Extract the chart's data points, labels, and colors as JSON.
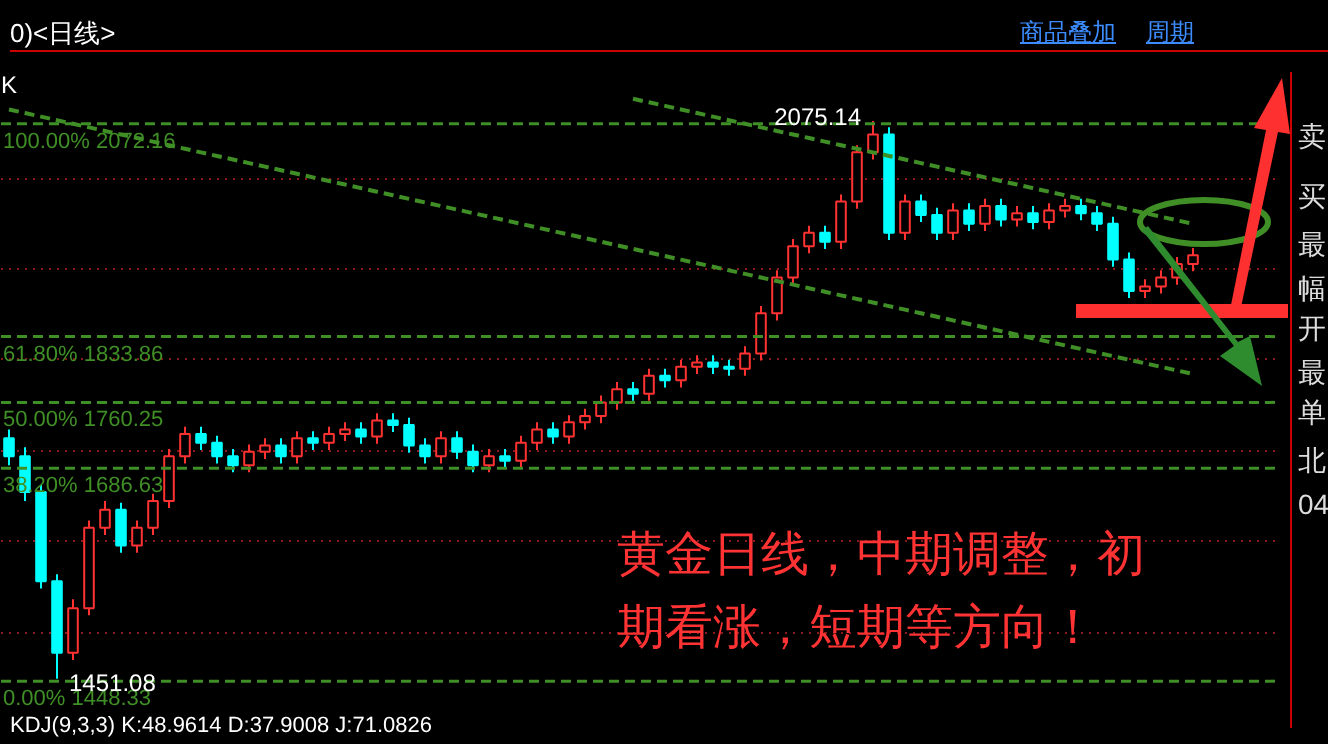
{
  "chart_data": {
    "type": "candlestick",
    "title": "0)<日线>",
    "categories": [
      null,
      null,
      null,
      null,
      null,
      null,
      null,
      null,
      null,
      null,
      null,
      null,
      null,
      null,
      null,
      null,
      null,
      null,
      null,
      null,
      null,
      null,
      null,
      null,
      null,
      null,
      null,
      null,
      null,
      null,
      null,
      null,
      null,
      null,
      null,
      null,
      null,
      null,
      null,
      null,
      null,
      null,
      null,
      null,
      null,
      null,
      null,
      null,
      null,
      null,
      null,
      null,
      null,
      null,
      null,
      null,
      null,
      null,
      null,
      null,
      null,
      null,
      null,
      null,
      null,
      null,
      null,
      null,
      null,
      null,
      null,
      null,
      null,
      null,
      null
    ],
    "ohlc": [
      [
        1720,
        1730,
        1690,
        1700
      ],
      [
        1700,
        1710,
        1650,
        1660
      ],
      [
        1660,
        1668,
        1552,
        1560
      ],
      [
        1560,
        1568,
        1451.08,
        1480
      ],
      [
        1480,
        1540,
        1472,
        1530
      ],
      [
        1530,
        1628,
        1522,
        1620
      ],
      [
        1620,
        1650,
        1612,
        1640
      ],
      [
        1640,
        1648,
        1592,
        1600
      ],
      [
        1600,
        1628,
        1592,
        1620
      ],
      [
        1620,
        1658,
        1612,
        1650
      ],
      [
        1650,
        1708,
        1642,
        1700
      ],
      [
        1700,
        1733,
        1692,
        1725
      ],
      [
        1725,
        1733,
        1707,
        1715
      ],
      [
        1715,
        1723,
        1692,
        1700
      ],
      [
        1700,
        1708,
        1682,
        1690
      ],
      [
        1690,
        1713,
        1682,
        1705
      ],
      [
        1705,
        1720,
        1697,
        1712
      ],
      [
        1712,
        1720,
        1692,
        1700
      ],
      [
        1700,
        1728,
        1692,
        1720
      ],
      [
        1720,
        1728,
        1707,
        1715
      ],
      [
        1715,
        1733,
        1707,
        1725
      ],
      [
        1725,
        1738,
        1717,
        1730
      ],
      [
        1730,
        1738,
        1714,
        1722
      ],
      [
        1722,
        1748,
        1714,
        1740
      ],
      [
        1740,
        1748,
        1727,
        1735
      ],
      [
        1735,
        1743,
        1704,
        1712
      ],
      [
        1712,
        1720,
        1692,
        1700
      ],
      [
        1700,
        1728,
        1692,
        1720
      ],
      [
        1720,
        1728,
        1697,
        1705
      ],
      [
        1705,
        1713,
        1682,
        1690
      ],
      [
        1690,
        1708,
        1682,
        1700
      ],
      [
        1700,
        1708,
        1687,
        1695
      ],
      [
        1695,
        1723,
        1687,
        1715
      ],
      [
        1715,
        1738,
        1707,
        1730
      ],
      [
        1730,
        1738,
        1714,
        1722
      ],
      [
        1722,
        1746,
        1714,
        1738
      ],
      [
        1738,
        1753,
        1730,
        1745
      ],
      [
        1745,
        1768,
        1737,
        1760
      ],
      [
        1760,
        1783,
        1752,
        1775
      ],
      [
        1775,
        1783,
        1762,
        1770
      ],
      [
        1770,
        1798,
        1762,
        1790
      ],
      [
        1790,
        1798,
        1777,
        1785
      ],
      [
        1785,
        1808,
        1777,
        1800
      ],
      [
        1800,
        1813,
        1792,
        1805
      ],
      [
        1805,
        1813,
        1792,
        1800
      ],
      [
        1800,
        1808,
        1790,
        1798
      ],
      [
        1798,
        1823,
        1790,
        1815
      ],
      [
        1815,
        1868,
        1807,
        1860
      ],
      [
        1860,
        1908,
        1852,
        1900
      ],
      [
        1900,
        1943,
        1892,
        1935
      ],
      [
        1935,
        1958,
        1927,
        1950
      ],
      [
        1950,
        1958,
        1932,
        1940
      ],
      [
        1940,
        1993,
        1932,
        1985
      ],
      [
        1985,
        2048,
        1977,
        2040
      ],
      [
        2040,
        2075.14,
        2032,
        2060
      ],
      [
        2060,
        2068,
        1942,
        1950
      ],
      [
        1950,
        1993,
        1942,
        1985
      ],
      [
        1985,
        1993,
        1962,
        1970
      ],
      [
        1970,
        1978,
        1942,
        1950
      ],
      [
        1950,
        1983,
        1942,
        1975
      ],
      [
        1975,
        1983,
        1952,
        1960
      ],
      [
        1960,
        1988,
        1952,
        1980
      ],
      [
        1980,
        1988,
        1957,
        1965
      ],
      [
        1965,
        1980,
        1957,
        1972
      ],
      [
        1972,
        1980,
        1954,
        1962
      ],
      [
        1962,
        1983,
        1954,
        1975
      ],
      [
        1975,
        1988,
        1967,
        1980
      ],
      [
        1980,
        1988,
        1964,
        1972
      ],
      [
        1972,
        1980,
        1952,
        1960
      ],
      [
        1960,
        1968,
        1912,
        1920
      ],
      [
        1920,
        1928,
        1877,
        1885
      ],
      [
        1885,
        1898,
        1877,
        1890
      ],
      [
        1890,
        1908,
        1882,
        1900
      ],
      [
        1900,
        1923,
        1892,
        1915
      ],
      [
        1915,
        1933,
        1907,
        1925
      ]
    ],
    "colors": [
      "#00ffff",
      "#00ffff",
      "#00ffff",
      "#00ffff",
      "#ff3232",
      "#ff3232",
      "#ff3232",
      "#00ffff",
      "#ff3232",
      "#ff3232",
      "#ff3232",
      "#ff3232",
      "#00ffff",
      "#00ffff",
      "#00ffff",
      "#ff3232",
      "#ff3232",
      "#00ffff",
      "#ff3232",
      "#00ffff",
      "#ff3232",
      "#ff3232",
      "#00ffff",
      "#ff3232",
      "#00ffff",
      "#00ffff",
      "#00ffff",
      "#ff3232",
      "#00ffff",
      "#00ffff",
      "#ff3232",
      "#00ffff",
      "#ff3232",
      "#ff3232",
      "#00ffff",
      "#ff3232",
      "#ff3232",
      "#ff3232",
      "#ff3232",
      "#00ffff",
      "#ff3232",
      "#00ffff",
      "#ff3232",
      "#ff3232",
      "#00ffff",
      "#00ffff",
      "#ff3232",
      "#ff3232",
      "#ff3232",
      "#ff3232",
      "#ff3232",
      "#00ffff",
      "#ff3232",
      "#ff3232",
      "#ff3232",
      "#00ffff",
      "#ff3232",
      "#00ffff",
      "#00ffff",
      "#ff3232",
      "#00ffff",
      "#ff3232",
      "#00ffff",
      "#ff3232",
      "#00ffff",
      "#ff3232",
      "#ff3232",
      "#00ffff",
      "#00ffff",
      "#00ffff",
      "#00ffff",
      "#ff3232",
      "#ff3232",
      "#ff3232",
      "#ff3232"
    ],
    "series": [
      {
        "type": "line",
        "color": "#3f8f26",
        "line_style": "dashed",
        "values": [
          2088,
          2084,
          2080,
          2076,
          2072,
          2068,
          2064,
          2060,
          2056,
          2052,
          2048,
          2044,
          2040,
          2036,
          2032,
          2028,
          2024,
          2020,
          2016,
          2012,
          2008,
          2004,
          2000,
          1996,
          1992,
          1988,
          1984,
          1980,
          1976,
          1972,
          1968,
          1964,
          1960,
          1956,
          1952,
          1948,
          1944,
          1940,
          1936,
          1932,
          1928,
          1924,
          1920,
          1916,
          1912,
          1908,
          1904,
          1900,
          1896,
          1892,
          1888,
          1884,
          1880,
          1876,
          1872,
          1868,
          1864,
          1860,
          1856,
          1852,
          1848,
          1844,
          1840,
          1836,
          1832,
          1828,
          1824,
          1820,
          1816,
          1812,
          1808,
          1804,
          1800,
          1796,
          1792
        ]
      },
      {
        "type": "line",
        "color": "#3f8f26",
        "line_style": "dashed",
        "values": [
          null,
          null,
          null,
          null,
          null,
          null,
          null,
          null,
          null,
          null,
          null,
          null,
          null,
          null,
          null,
          null,
          null,
          null,
          null,
          null,
          null,
          null,
          null,
          null,
          null,
          null,
          null,
          null,
          null,
          null,
          null,
          null,
          null,
          null,
          null,
          null,
          null,
          null,
          null,
          2100,
          2096,
          2092,
          2088,
          2084,
          2080,
          2076,
          2072,
          2068,
          2064,
          2060,
          2056,
          2052,
          2048,
          2044,
          2040,
          2036,
          2032,
          2028,
          2024,
          2020,
          2016,
          2012,
          2008,
          2004,
          2000,
          1996,
          1992,
          1988,
          1984,
          1980,
          1976,
          1972,
          1968,
          1964,
          1960
        ]
      }
    ],
    "ref_lines": [
      {
        "axis": "y",
        "value": 2072.16,
        "label": "100.00% 2072.16",
        "color": "#3f8f26",
        "line_style": "dashed"
      },
      {
        "axis": "y",
        "value": 1833.86,
        "label": "61.80% 1833.86",
        "color": "#3f8f26",
        "line_style": "dashed"
      },
      {
        "axis": "y",
        "value": 1760.25,
        "label": "50.00% 1760.25",
        "color": "#3f8f26",
        "line_style": "dashed"
      },
      {
        "axis": "y",
        "value": 1686.63,
        "label": "38.20% 1686.63",
        "color": "#3f8f26",
        "line_style": "dashed"
      },
      {
        "axis": "y",
        "value": 1448.33,
        "label": "0.00% 1448.33",
        "color": "#3f8f26",
        "line_style": "dashed"
      }
    ],
    "ylim": [
      1406,
      2140
    ],
    "yticks": [
      {
        "value": 1503,
        "label": null
      },
      {
        "value": 1605,
        "label": null
      },
      {
        "value": 1706,
        "label": null
      },
      {
        "value": 1808,
        "label": null
      },
      {
        "value": 1909,
        "label": null
      },
      {
        "value": 2010,
        "label": null
      }
    ],
    "tick_labels": false,
    "grid": "y",
    "annotations": [
      "K",
      "商品叠加",
      "周期",
      "黄金日线，中期调整，初期看涨，短期等方向！",
      "KDJ(9,3,3) K:48.9614 D:37.9008 J:71.0826",
      "卖",
      "买",
      "最",
      "幅",
      "开",
      "最",
      "单",
      "北",
      "04",
      {
        "text": "2075.14",
        "y": 2075.14
      },
      {
        "text": "1451.08",
        "y": 1451.08
      }
    ]
  }
}
